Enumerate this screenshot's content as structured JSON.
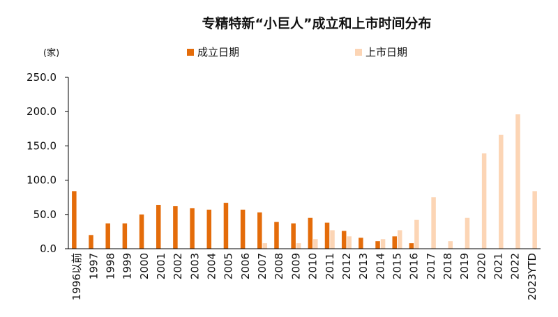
{
  "chart_data": {
    "type": "bar",
    "title": "专精特新“小巨人”成立和上市时间分布",
    "ylabel": "(家)",
    "ylim": [
      0,
      250
    ],
    "yticks": [
      "0.0",
      "50.0",
      "100.0",
      "150.0",
      "200.0",
      "250.0"
    ],
    "grid": false,
    "legend_position": "top",
    "categories": [
      "1996以前",
      "1997",
      "1998",
      "1999",
      "2000",
      "2001",
      "2002",
      "2003",
      "2004",
      "2005",
      "2006",
      "2007",
      "2008",
      "2009",
      "2010",
      "2011",
      "2012",
      "2013",
      "2014",
      "2015",
      "2016",
      "2017",
      "2018",
      "2019",
      "2020",
      "2021",
      "2022",
      "2023YTD"
    ],
    "series": [
      {
        "name": "成立日期",
        "color": "#e46c0a",
        "values": [
          84,
          20,
          37,
          37,
          50,
          64,
          62,
          59,
          57,
          67,
          57,
          53,
          39,
          37,
          45,
          38,
          26,
          16,
          11,
          18,
          8,
          0,
          0,
          0,
          0,
          0,
          0,
          0
        ]
      },
      {
        "name": "上市日期",
        "color": "#fcd5b5",
        "values": [
          0,
          0,
          0,
          0,
          0,
          0,
          0,
          0,
          0,
          0,
          0,
          8,
          0,
          8,
          14,
          27,
          18,
          0,
          14,
          27,
          42,
          75,
          11,
          45,
          139,
          166,
          196,
          84
        ]
      }
    ]
  }
}
